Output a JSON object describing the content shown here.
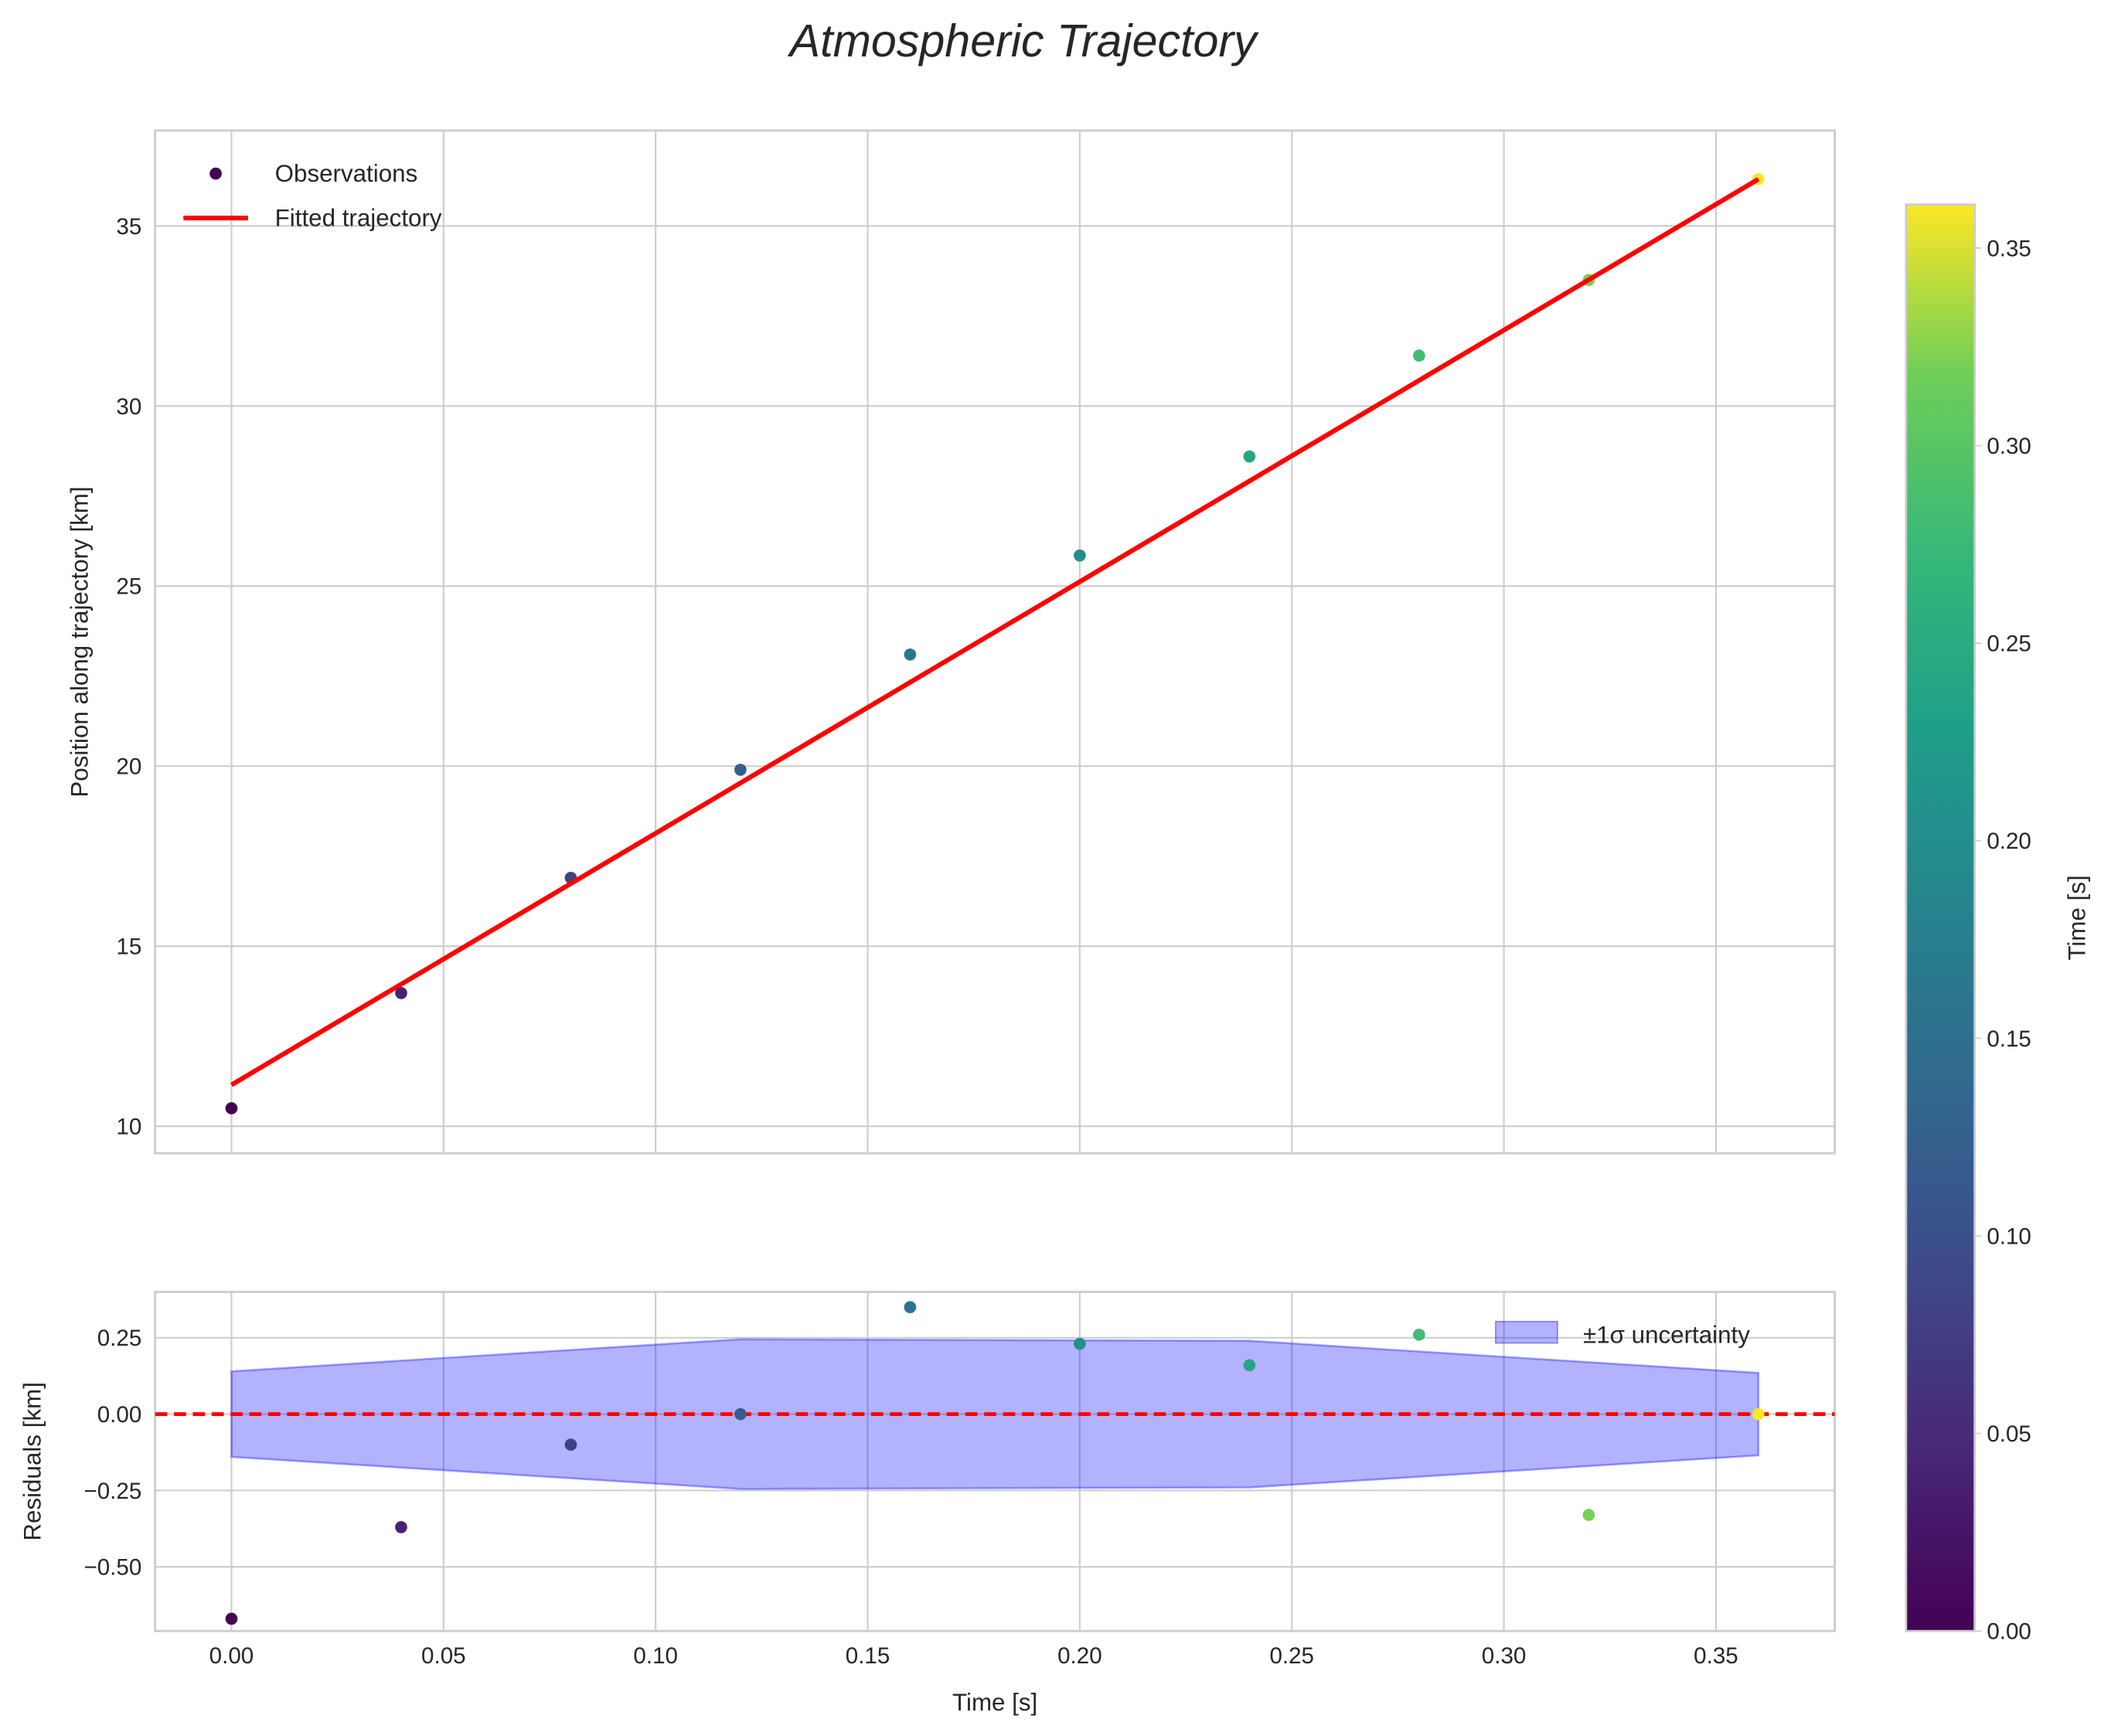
{
  "chart_data": [
    {
      "type": "scatter",
      "title": "Atmospheric Trajectory",
      "xlabel": "",
      "ylabel": "Position along trajectory [km]",
      "xlim": [
        -0.018,
        0.378
      ],
      "ylim": [
        9.25,
        37.65
      ],
      "xticks": [
        0.0,
        0.05,
        0.1,
        0.15,
        0.2,
        0.25,
        0.3,
        0.35
      ],
      "yticks": [
        10,
        15,
        20,
        25,
        30,
        35
      ],
      "grid": true,
      "legend": {
        "placement": "top-left",
        "entries": [
          "Observations",
          "Fitted trajectory"
        ]
      },
      "observations": {
        "name": "Observations",
        "x": [
          0.0,
          0.04,
          0.08,
          0.12,
          0.16,
          0.2,
          0.24,
          0.28,
          0.32,
          0.36
        ],
        "y": [
          10.5,
          13.7,
          16.9,
          19.9,
          23.1,
          25.85,
          28.6,
          31.4,
          33.5,
          36.3
        ]
      },
      "fit": {
        "name": "Fitted trajectory",
        "x": [
          0.0,
          0.36
        ],
        "y": [
          11.15,
          36.3
        ],
        "color": "#ff0000"
      }
    },
    {
      "type": "scatter",
      "xlabel": "Time [s]",
      "ylabel": "Residuals [km]",
      "xlim": [
        -0.018,
        0.378
      ],
      "ylim": [
        -0.71,
        0.4
      ],
      "xticks": [
        0.0,
        0.05,
        0.1,
        0.15,
        0.2,
        0.25,
        0.3,
        0.35
      ],
      "xtick_labels": [
        "0.00",
        "0.05",
        "0.10",
        "0.15",
        "0.20",
        "0.25",
        "0.30",
        "0.35"
      ],
      "yticks": [
        0.25,
        0.0,
        -0.25,
        -0.5
      ],
      "ytick_labels": [
        "0.25",
        "0.00",
        "−0.25",
        "−0.50"
      ],
      "grid": true,
      "legend": {
        "placement": "top-right",
        "entries": [
          "±1σ uncertainty"
        ]
      },
      "residuals": {
        "x": [
          0.0,
          0.04,
          0.08,
          0.12,
          0.16,
          0.2,
          0.24,
          0.28,
          0.32,
          0.36
        ],
        "y": [
          -0.67,
          -0.37,
          -0.1,
          0.0,
          0.35,
          0.23,
          0.16,
          0.26,
          -0.33,
          0.0
        ]
      },
      "uncertainty": {
        "name": "±1σ uncertainty",
        "x": [
          0.0,
          0.12,
          0.24,
          0.36
        ],
        "sigma": [
          0.14,
          0.245,
          0.24,
          0.135
        ],
        "color": "#0000ff"
      },
      "zero_line_color": "#ff0000"
    }
  ],
  "colorbar": {
    "label": "Time [s]",
    "range": [
      0.0,
      0.36
    ],
    "ticks": [
      0.0,
      0.05,
      0.1,
      0.15,
      0.2,
      0.25,
      0.3,
      0.35
    ],
    "tick_labels": [
      "0.00",
      "0.05",
      "0.10",
      "0.15",
      "0.20",
      "0.25",
      "0.30",
      "0.35"
    ],
    "colormap": "viridis"
  }
}
